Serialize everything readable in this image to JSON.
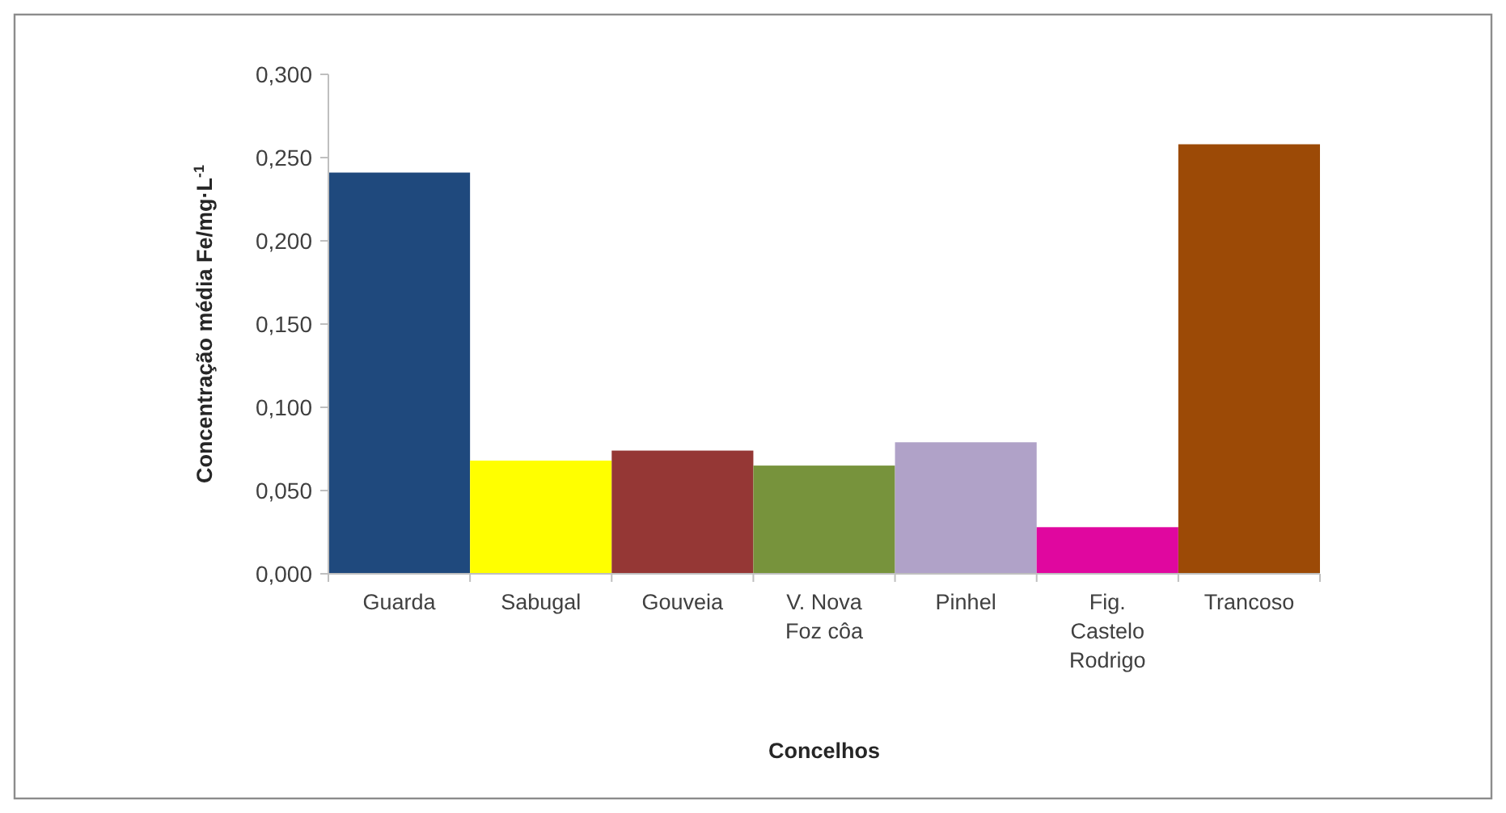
{
  "chart_data": {
    "type": "bar",
    "xlabel": "Concelhos",
    "ylabel": "Concentração média Fe/mg·L$^{-1}$",
    "categories": [
      "Guarda",
      "Sabugal",
      "Gouveia",
      "V. Nova Foz côa",
      "Pinhel",
      "Fig. Castelo Rodrigo",
      "Trancoso"
    ],
    "values": [
      0.241,
      0.068,
      0.074,
      0.065,
      0.079,
      0.028,
      0.258
    ],
    "colors": [
      "#1f497d",
      "#ffff00",
      "#953735",
      "#77933c",
      "#b0a2c8",
      "#e0079f",
      "#9c4a06"
    ],
    "ylim": [
      0,
      0.3
    ],
    "yticks": [
      {
        "value": 0,
        "label": "0,000"
      },
      {
        "value": 0.05,
        "label": "0,050"
      },
      {
        "value": 0.1,
        "label": "0,100"
      },
      {
        "value": 0.15,
        "label": "0,150"
      },
      {
        "value": 0.2,
        "label": "0,200"
      },
      {
        "value": 0.25,
        "label": "0,250"
      },
      {
        "value": 0.3,
        "label": "0,300"
      }
    ],
    "grid": false
  }
}
